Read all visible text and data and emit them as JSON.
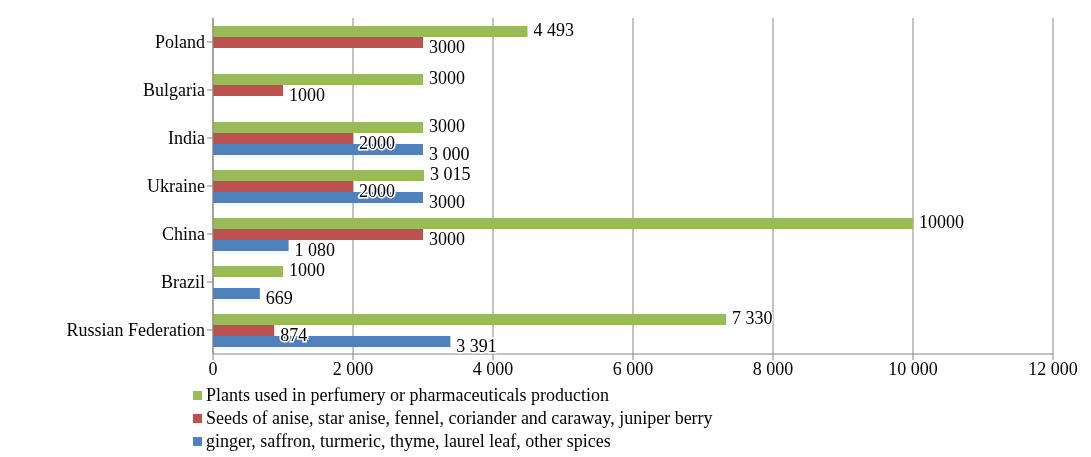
{
  "chart_data": {
    "type": "bar",
    "orientation": "horizontal",
    "categories": [
      "Poland",
      "Bulgaria",
      "India",
      "Ukraine",
      "China",
      "Brazil",
      "Russian Federation"
    ],
    "series": [
      {
        "name": "Plants used in perfumery or pharmaceuticals production",
        "color": "#9bbb59",
        "values": [
          4493,
          3000,
          3000,
          3015,
          10000,
          1000,
          7330
        ],
        "value_labels": [
          "4 493",
          "3000",
          "3000",
          "3 015",
          "10000",
          "1000",
          "7 330"
        ]
      },
      {
        "name": "Seeds of anise, star anise, fennel, coriander and caraway, juniper berry",
        "color": "#c0504d",
        "values": [
          3000,
          1000,
          2000,
          2000,
          3000,
          null,
          874
        ],
        "value_labels": [
          "3000",
          "1000",
          "2000",
          "2000",
          "3000",
          null,
          "874"
        ]
      },
      {
        "name": "ginger, saffron, turmeric, thyme, laurel leaf, other spices",
        "color": "#4f81bd",
        "values": [
          null,
          null,
          3000,
          3000,
          1080,
          669,
          3391
        ],
        "value_labels": [
          null,
          null,
          "3 000",
          "3000",
          "1 080",
          "669",
          "3 391"
        ]
      }
    ],
    "xlim": [
      0,
      12000
    ],
    "xticks": [
      0,
      {
        "value": 2000,
        "label": "2 000"
      },
      {
        "value": 4000,
        "label": "4 000"
      },
      {
        "value": 6000,
        "label": "6 000"
      },
      {
        "value": 8000,
        "label": "8 000"
      },
      {
        "value": 10000,
        "label": "10 000"
      },
      {
        "value": 12000,
        "label": "12 000"
      }
    ],
    "grid": "x",
    "legend": "bottom"
  }
}
